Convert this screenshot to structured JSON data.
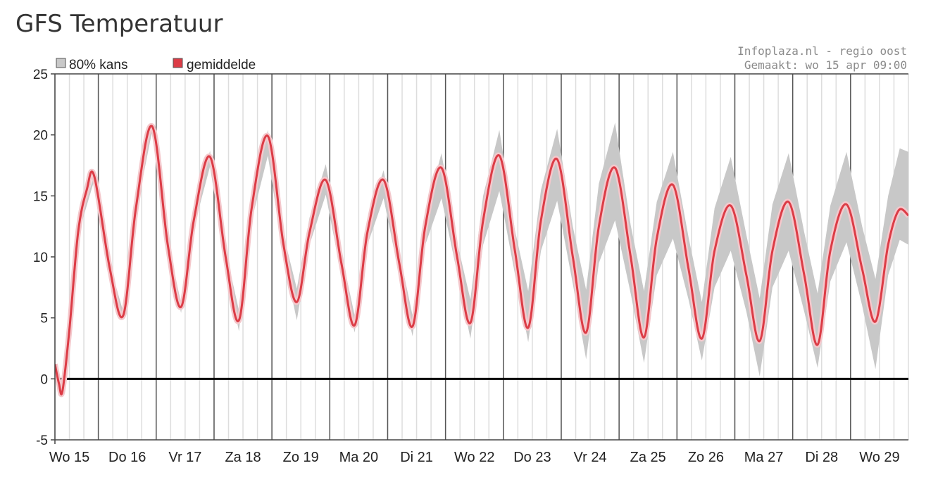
{
  "page": {
    "title": "GFS Temperatuur"
  },
  "credit": {
    "line1": "Infoplaza.nl - regio oost",
    "line2": "Gemaakt: wo 15 apr 09:00"
  },
  "colors": {
    "band": "#c8c8c8",
    "mean": "#dc3c46",
    "mean_halo": "#f4c8cc",
    "zero": "#000000"
  },
  "chart_data": {
    "type": "area",
    "title": "GFS Temperatuur",
    "xlabel": "",
    "ylabel": "",
    "ylim": [
      -5,
      25
    ],
    "yticks": [
      25,
      20,
      15,
      10,
      5,
      0,
      -5
    ],
    "x_start_day": 14.75,
    "x_end_day": 29.5,
    "days": [
      {
        "label": "Wo 15",
        "day": 15
      },
      {
        "label": "Do 16",
        "day": 16
      },
      {
        "label": "Vr 17",
        "day": 17
      },
      {
        "label": "Za 18",
        "day": 18
      },
      {
        "label": "Zo 19",
        "day": 19
      },
      {
        "label": "Ma 20",
        "day": 20
      },
      {
        "label": "Di 21",
        "day": 21
      },
      {
        "label": "Wo 22",
        "day": 22
      },
      {
        "label": "Do 23",
        "day": 23
      },
      {
        "label": "Vr 24",
        "day": 24
      },
      {
        "label": "Za 25",
        "day": 25
      },
      {
        "label": "Zo 26",
        "day": 26
      },
      {
        "label": "Ma 27",
        "day": 27
      },
      {
        "label": "Di 28",
        "day": 28
      },
      {
        "label": "Wo 29",
        "day": 29
      }
    ],
    "legend": [
      {
        "name": "80% kans",
        "color": "#c8c8c8"
      },
      {
        "name": "gemiddelde",
        "color": "#dc3c46"
      }
    ],
    "legend_position": "top-left",
    "grid": true,
    "series": [
      {
        "name": "gemiddelde",
        "points": [
          {
            "x": 14.75,
            "y": 1.2
          },
          {
            "x": 14.82,
            "y": -0.4
          },
          {
            "x": 14.88,
            "y": -1.0
          },
          {
            "x": 15.0,
            "y": 4.0
          },
          {
            "x": 15.15,
            "y": 12.0
          },
          {
            "x": 15.3,
            "y": 15.5
          },
          {
            "x": 15.43,
            "y": 16.6
          },
          {
            "x": 15.7,
            "y": 9.0
          },
          {
            "x": 15.93,
            "y": 5.2
          },
          {
            "x": 16.15,
            "y": 14.0
          },
          {
            "x": 16.43,
            "y": 20.7
          },
          {
            "x": 16.7,
            "y": 11.0
          },
          {
            "x": 16.93,
            "y": 5.9
          },
          {
            "x": 17.15,
            "y": 13.0
          },
          {
            "x": 17.43,
            "y": 18.2
          },
          {
            "x": 17.7,
            "y": 10.0
          },
          {
            "x": 17.93,
            "y": 4.8
          },
          {
            "x": 18.15,
            "y": 14.0
          },
          {
            "x": 18.43,
            "y": 19.9
          },
          {
            "x": 18.7,
            "y": 11.0
          },
          {
            "x": 18.93,
            "y": 6.3
          },
          {
            "x": 19.15,
            "y": 12.0
          },
          {
            "x": 19.43,
            "y": 16.3
          },
          {
            "x": 19.7,
            "y": 9.5
          },
          {
            "x": 19.93,
            "y": 4.4
          },
          {
            "x": 20.15,
            "y": 12.0
          },
          {
            "x": 20.43,
            "y": 16.3
          },
          {
            "x": 20.7,
            "y": 9.5
          },
          {
            "x": 20.93,
            "y": 4.3
          },
          {
            "x": 21.15,
            "y": 12.5
          },
          {
            "x": 21.43,
            "y": 17.3
          },
          {
            "x": 21.7,
            "y": 10.0
          },
          {
            "x": 21.93,
            "y": 4.6
          },
          {
            "x": 22.15,
            "y": 13.0
          },
          {
            "x": 22.43,
            "y": 18.3
          },
          {
            "x": 22.7,
            "y": 10.5
          },
          {
            "x": 22.93,
            "y": 4.2
          },
          {
            "x": 23.15,
            "y": 13.0
          },
          {
            "x": 23.43,
            "y": 18.0
          },
          {
            "x": 23.7,
            "y": 10.0
          },
          {
            "x": 23.93,
            "y": 3.8
          },
          {
            "x": 24.15,
            "y": 12.5
          },
          {
            "x": 24.43,
            "y": 17.3
          },
          {
            "x": 24.7,
            "y": 10.0
          },
          {
            "x": 24.93,
            "y": 3.4
          },
          {
            "x": 25.15,
            "y": 11.5
          },
          {
            "x": 25.43,
            "y": 15.9
          },
          {
            "x": 25.7,
            "y": 9.0
          },
          {
            "x": 25.93,
            "y": 3.3
          },
          {
            "x": 26.15,
            "y": 10.5
          },
          {
            "x": 26.43,
            "y": 14.2
          },
          {
            "x": 26.7,
            "y": 8.5
          },
          {
            "x": 26.93,
            "y": 3.1
          },
          {
            "x": 27.15,
            "y": 10.5
          },
          {
            "x": 27.43,
            "y": 14.5
          },
          {
            "x": 27.7,
            "y": 8.5
          },
          {
            "x": 27.93,
            "y": 2.8
          },
          {
            "x": 28.15,
            "y": 10.5
          },
          {
            "x": 28.43,
            "y": 14.3
          },
          {
            "x": 28.7,
            "y": 9.0
          },
          {
            "x": 28.93,
            "y": 4.7
          },
          {
            "x": 29.15,
            "y": 11.0
          },
          {
            "x": 29.33,
            "y": 13.8
          },
          {
            "x": 29.5,
            "y": 13.4
          }
        ]
      },
      {
        "name": "80% kans",
        "upper": [
          {
            "x": 14.75,
            "y": 1.2
          },
          {
            "x": 14.88,
            "y": -0.9
          },
          {
            "x": 15.0,
            "y": 4.2
          },
          {
            "x": 15.15,
            "y": 12.2
          },
          {
            "x": 15.43,
            "y": 16.8
          },
          {
            "x": 15.7,
            "y": 9.3
          },
          {
            "x": 15.93,
            "y": 5.5
          },
          {
            "x": 16.15,
            "y": 14.3
          },
          {
            "x": 16.43,
            "y": 21.0
          },
          {
            "x": 16.7,
            "y": 11.3
          },
          {
            "x": 16.93,
            "y": 6.2
          },
          {
            "x": 17.15,
            "y": 13.5
          },
          {
            "x": 17.43,
            "y": 18.7
          },
          {
            "x": 17.7,
            "y": 10.5
          },
          {
            "x": 17.93,
            "y": 5.6
          },
          {
            "x": 18.15,
            "y": 14.8
          },
          {
            "x": 18.43,
            "y": 20.4
          },
          {
            "x": 18.7,
            "y": 11.8
          },
          {
            "x": 18.93,
            "y": 7.4
          },
          {
            "x": 19.15,
            "y": 13.2
          },
          {
            "x": 19.43,
            "y": 17.6
          },
          {
            "x": 19.7,
            "y": 10.3
          },
          {
            "x": 19.93,
            "y": 5.2
          },
          {
            "x": 20.15,
            "y": 13.0
          },
          {
            "x": 20.43,
            "y": 17.1
          },
          {
            "x": 20.7,
            "y": 10.4
          },
          {
            "x": 20.93,
            "y": 5.2
          },
          {
            "x": 21.15,
            "y": 13.5
          },
          {
            "x": 21.43,
            "y": 18.5
          },
          {
            "x": 21.7,
            "y": 11.2
          },
          {
            "x": 21.93,
            "y": 6.5
          },
          {
            "x": 22.15,
            "y": 15.0
          },
          {
            "x": 22.43,
            "y": 20.4
          },
          {
            "x": 22.7,
            "y": 12.2
          },
          {
            "x": 22.93,
            "y": 7.2
          },
          {
            "x": 23.15,
            "y": 15.5
          },
          {
            "x": 23.43,
            "y": 20.5
          },
          {
            "x": 23.7,
            "y": 12.5
          },
          {
            "x": 23.93,
            "y": 7.3
          },
          {
            "x": 24.15,
            "y": 16.0
          },
          {
            "x": 24.43,
            "y": 21.0
          },
          {
            "x": 24.7,
            "y": 12.6
          },
          {
            "x": 24.93,
            "y": 7.2
          },
          {
            "x": 25.15,
            "y": 14.5
          },
          {
            "x": 25.43,
            "y": 18.6
          },
          {
            "x": 25.7,
            "y": 11.6
          },
          {
            "x": 25.93,
            "y": 6.3
          },
          {
            "x": 26.15,
            "y": 14.0
          },
          {
            "x": 26.43,
            "y": 18.2
          },
          {
            "x": 26.7,
            "y": 11.8
          },
          {
            "x": 26.93,
            "y": 6.6
          },
          {
            "x": 27.15,
            "y": 14.3
          },
          {
            "x": 27.43,
            "y": 18.5
          },
          {
            "x": 27.7,
            "y": 12.0
          },
          {
            "x": 27.93,
            "y": 7.0
          },
          {
            "x": 28.15,
            "y": 14.2
          },
          {
            "x": 28.43,
            "y": 18.6
          },
          {
            "x": 28.7,
            "y": 12.5
          },
          {
            "x": 28.93,
            "y": 8.2
          },
          {
            "x": 29.15,
            "y": 15.0
          },
          {
            "x": 29.35,
            "y": 18.9
          },
          {
            "x": 29.5,
            "y": 18.6
          }
        ],
        "lower": [
          {
            "x": 14.75,
            "y": 1.0
          },
          {
            "x": 14.88,
            "y": -1.1
          },
          {
            "x": 15.0,
            "y": 3.8
          },
          {
            "x": 15.15,
            "y": 11.8
          },
          {
            "x": 15.43,
            "y": 16.3
          },
          {
            "x": 15.7,
            "y": 8.6
          },
          {
            "x": 15.93,
            "y": 4.8
          },
          {
            "x": 16.15,
            "y": 13.6
          },
          {
            "x": 16.43,
            "y": 20.3
          },
          {
            "x": 16.7,
            "y": 10.6
          },
          {
            "x": 16.93,
            "y": 5.4
          },
          {
            "x": 17.15,
            "y": 12.4
          },
          {
            "x": 17.43,
            "y": 17.4
          },
          {
            "x": 17.7,
            "y": 9.3
          },
          {
            "x": 17.93,
            "y": 3.9
          },
          {
            "x": 18.15,
            "y": 13.0
          },
          {
            "x": 18.43,
            "y": 18.3
          },
          {
            "x": 18.7,
            "y": 10.0
          },
          {
            "x": 18.93,
            "y": 4.8
          },
          {
            "x": 19.15,
            "y": 11.0
          },
          {
            "x": 19.43,
            "y": 15.1
          },
          {
            "x": 19.7,
            "y": 8.5
          },
          {
            "x": 19.93,
            "y": 3.8
          },
          {
            "x": 20.15,
            "y": 11.0
          },
          {
            "x": 20.43,
            "y": 14.8
          },
          {
            "x": 20.7,
            "y": 8.5
          },
          {
            "x": 20.93,
            "y": 3.5
          },
          {
            "x": 21.15,
            "y": 11.0
          },
          {
            "x": 21.43,
            "y": 14.8
          },
          {
            "x": 21.7,
            "y": 8.7
          },
          {
            "x": 21.93,
            "y": 3.3
          },
          {
            "x": 22.15,
            "y": 11.0
          },
          {
            "x": 22.43,
            "y": 15.4
          },
          {
            "x": 22.7,
            "y": 8.6
          },
          {
            "x": 22.93,
            "y": 3.0
          },
          {
            "x": 23.15,
            "y": 10.5
          },
          {
            "x": 23.43,
            "y": 14.6
          },
          {
            "x": 23.7,
            "y": 7.8
          },
          {
            "x": 23.93,
            "y": 1.6
          },
          {
            "x": 24.15,
            "y": 9.5
          },
          {
            "x": 24.43,
            "y": 13.0
          },
          {
            "x": 24.7,
            "y": 7.0
          },
          {
            "x": 24.93,
            "y": 1.3
          },
          {
            "x": 25.15,
            "y": 8.5
          },
          {
            "x": 25.43,
            "y": 11.5
          },
          {
            "x": 25.7,
            "y": 6.5
          },
          {
            "x": 25.93,
            "y": 1.5
          },
          {
            "x": 26.15,
            "y": 7.5
          },
          {
            "x": 26.43,
            "y": 10.5
          },
          {
            "x": 26.7,
            "y": 5.5
          },
          {
            "x": 26.93,
            "y": 0.2
          },
          {
            "x": 27.15,
            "y": 7.5
          },
          {
            "x": 27.43,
            "y": 10.5
          },
          {
            "x": 27.7,
            "y": 5.5
          },
          {
            "x": 27.93,
            "y": 0.9
          },
          {
            "x": 28.15,
            "y": 8.0
          },
          {
            "x": 28.43,
            "y": 11.2
          },
          {
            "x": 28.7,
            "y": 6.0
          },
          {
            "x": 28.93,
            "y": 0.8
          },
          {
            "x": 29.15,
            "y": 8.5
          },
          {
            "x": 29.35,
            "y": 11.4
          },
          {
            "x": 29.5,
            "y": 11.0
          }
        ]
      }
    ]
  }
}
